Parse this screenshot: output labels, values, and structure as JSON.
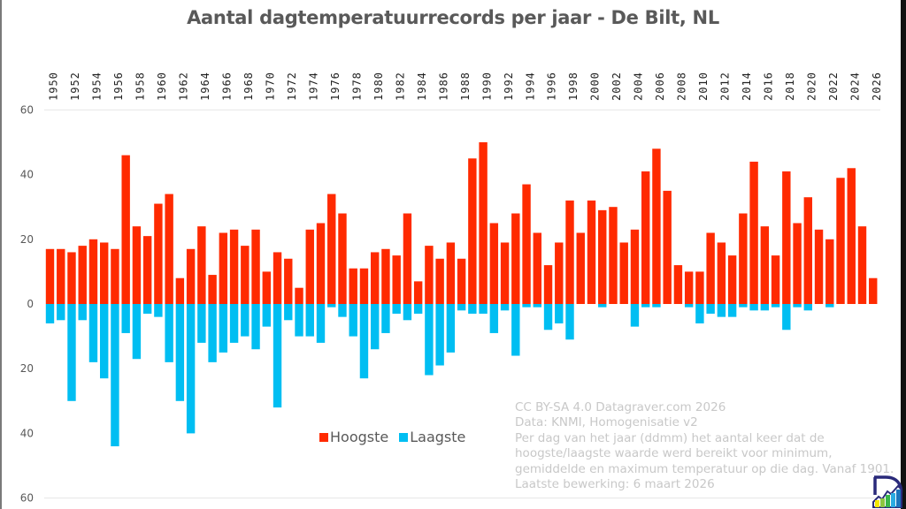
{
  "chart_data": {
    "type": "bar",
    "title": "Aantal dagtemperatuurrecords per jaar - De Bilt, NL",
    "xlabel": "",
    "ylabel": "",
    "ylim": [
      -60,
      60
    ],
    "yticks": [
      60,
      40,
      20,
      0,
      20,
      40,
      60
    ],
    "ytick_values": [
      60,
      40,
      20,
      0,
      -20,
      -40,
      -60
    ],
    "x_tick_labels": [
      "1950",
      "1952",
      "1954",
      "1956",
      "1958",
      "1960",
      "1962",
      "1964",
      "1966",
      "1968",
      "1970",
      "1972",
      "1974",
      "1976",
      "1978",
      "1980",
      "1982",
      "1984",
      "1986",
      "1988",
      "1990",
      "1992",
      "1994",
      "1996",
      "1998",
      "2000",
      "2002",
      "2004",
      "2006",
      "2008",
      "2010",
      "2012",
      "2014",
      "2016",
      "2018",
      "2020",
      "2022",
      "2024",
      "2026"
    ],
    "x_tick_position": "top",
    "grid": false,
    "legend_position": "bottom-center",
    "categories": [
      1950,
      1951,
      1952,
      1953,
      1954,
      1955,
      1956,
      1957,
      1958,
      1959,
      1960,
      1961,
      1962,
      1963,
      1964,
      1965,
      1966,
      1967,
      1968,
      1969,
      1970,
      1971,
      1972,
      1973,
      1974,
      1975,
      1976,
      1977,
      1978,
      1979,
      1980,
      1981,
      1982,
      1983,
      1984,
      1985,
      1986,
      1987,
      1988,
      1989,
      1990,
      1991,
      1992,
      1993,
      1994,
      1995,
      1996,
      1997,
      1998,
      1999,
      2000,
      2001,
      2002,
      2003,
      2004,
      2005,
      2006,
      2007,
      2008,
      2009,
      2010,
      2011,
      2012,
      2013,
      2014,
      2015,
      2016,
      2017,
      2018,
      2019,
      2020,
      2021,
      2022,
      2023,
      2024,
      2025,
      2026
    ],
    "series": [
      {
        "name": "Hoogste",
        "color": "#ff2a00",
        "direction": "up",
        "values": [
          17,
          17,
          16,
          18,
          20,
          19,
          17,
          46,
          24,
          21,
          31,
          34,
          8,
          17,
          24,
          9,
          22,
          23,
          18,
          23,
          10,
          16,
          14,
          5,
          23,
          25,
          34,
          28,
          11,
          11,
          16,
          17,
          15,
          28,
          7,
          18,
          14,
          19,
          14,
          45,
          50,
          25,
          19,
          28,
          37,
          22,
          12,
          19,
          32,
          22,
          32,
          29,
          30,
          19,
          23,
          41,
          48,
          35,
          12,
          10,
          10,
          22,
          19,
          15,
          28,
          44,
          24,
          15,
          41,
          25,
          33,
          23,
          20,
          39,
          42,
          24,
          8
        ]
      },
      {
        "name": "Laagste",
        "color": "#00bef2",
        "direction": "down",
        "values": [
          6,
          5,
          30,
          5,
          18,
          23,
          44,
          9,
          17,
          3,
          4,
          18,
          30,
          40,
          12,
          18,
          15,
          12,
          10,
          14,
          7,
          32,
          5,
          10,
          10,
          12,
          1,
          4,
          10,
          23,
          14,
          9,
          3,
          5,
          3,
          22,
          19,
          15,
          2,
          3,
          3,
          9,
          2,
          16,
          1,
          1,
          8,
          6,
          11,
          0,
          0,
          1,
          0,
          0,
          7,
          1,
          1,
          0,
          0,
          1,
          6,
          3,
          4,
          4,
          1,
          2,
          2,
          1,
          8,
          1,
          2,
          0,
          1,
          0,
          0,
          0,
          0
        ]
      }
    ]
  },
  "legend": {
    "items": [
      {
        "label": "Hoogste",
        "color": "#ff2a00"
      },
      {
        "label": "Laagste",
        "color": "#00bef2"
      }
    ]
  },
  "annotation": {
    "lines": [
      "CC BY-SA 4.0  Datagraver.com 2026",
      "Data: KNMI, Homogenisatie v2",
      "Per dag van het jaar (ddmm) het aantal keer dat de",
      "hoogste/laagste waarde werd bereikt voor minimum,",
      "gemiddelde en maximum temperatuur op die dag. Vanaf 1901.",
      "Laatste bewerking: 6 maart 2026"
    ]
  },
  "logo": {
    "name": "datagraver-logo"
  }
}
